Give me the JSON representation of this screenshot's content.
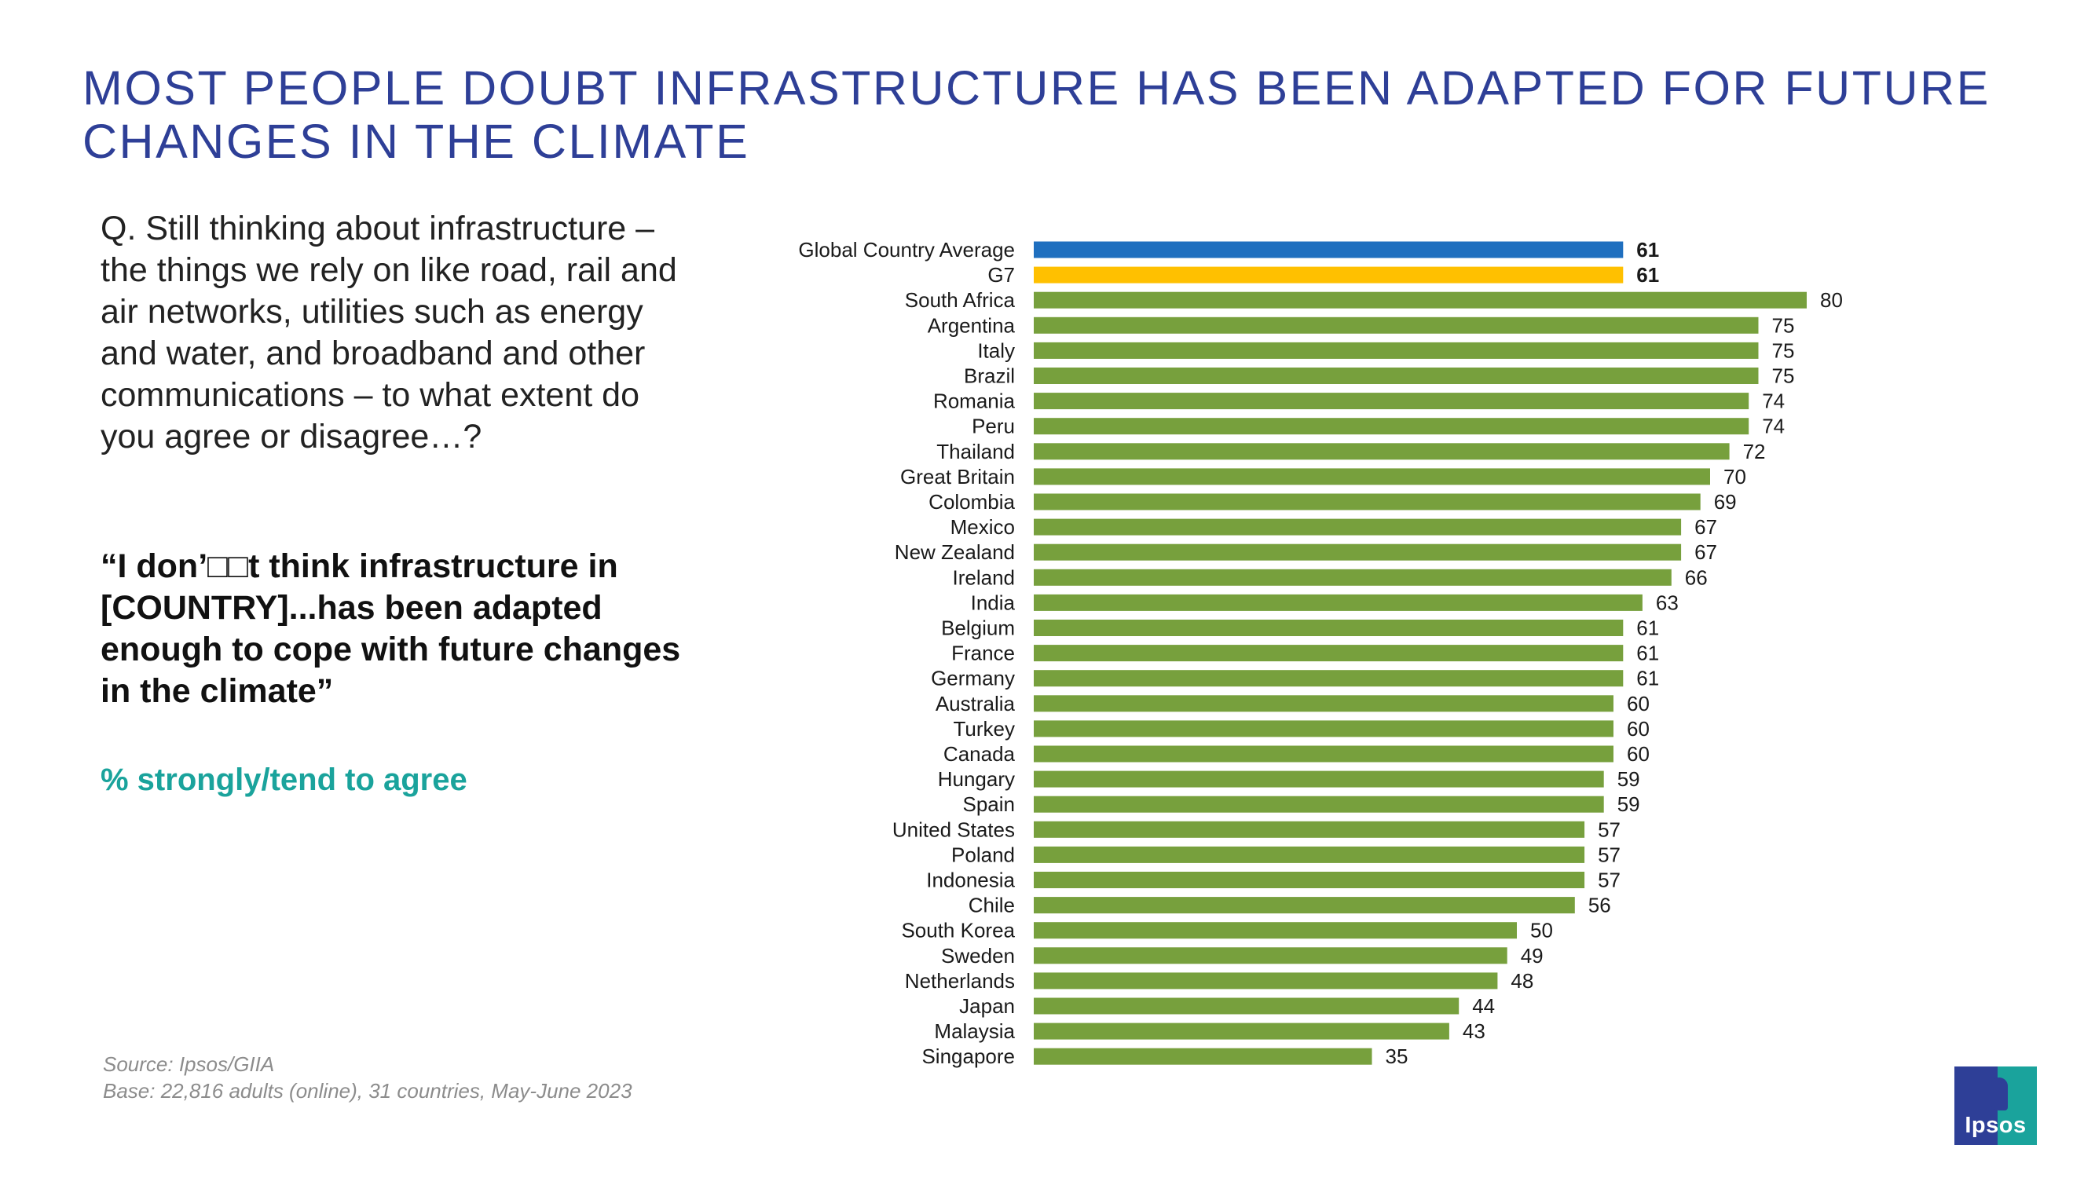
{
  "title": "MOST PEOPLE DOUBT INFRASTRUCTURE HAS BEEN ADAPTED FOR FUTURE CHANGES IN THE CLIMATE",
  "question": "Q. Still thinking about infrastructure – the things we rely on like road, rail and air networks, utilities such as energy and water, and broadband and other communications – to what extent do you agree or disagree…?",
  "quote": "“I don’□□t think infrastructure in [COUNTRY]...has been adapted enough to cope with future changes in the climate”",
  "metric_label": "% strongly/tend to agree",
  "source": "Source: Ipsos/GIIA",
  "base": "Base: 22,816 adults (online), 31 countries, May-June 2023",
  "logo_text": "Ipsos",
  "colors": {
    "title": "#2e3f97",
    "global_bar": "#1f6fbf",
    "g7_bar": "#ffc000",
    "country_bar": "#77a03d",
    "metric": "#1aa39c"
  },
  "chart_data": {
    "type": "bar",
    "orientation": "horizontal",
    "title": "",
    "xlabel": "",
    "ylabel": "",
    "xlim": [
      0,
      100
    ],
    "categories": [
      "Global Country Average",
      "G7",
      "South Africa",
      "Argentina",
      "Italy",
      "Brazil",
      "Romania",
      "Peru",
      "Thailand",
      "Great Britain",
      "Colombia",
      "Mexico",
      "New Zealand",
      "Ireland",
      "India",
      "Belgium",
      "France",
      "Germany",
      "Australia",
      "Turkey",
      "Canada",
      "Hungary",
      "Spain",
      "United States",
      "Poland",
      "Indonesia",
      "Chile",
      "South Korea",
      "Sweden",
      "Netherlands",
      "Japan",
      "Malaysia",
      "Singapore"
    ],
    "values": [
      61,
      61,
      80,
      75,
      75,
      75,
      74,
      74,
      72,
      70,
      69,
      67,
      67,
      66,
      63,
      61,
      61,
      61,
      60,
      60,
      60,
      59,
      59,
      57,
      57,
      57,
      56,
      50,
      49,
      48,
      44,
      43,
      35
    ],
    "bar_types": [
      "global",
      "g7",
      "country",
      "country",
      "country",
      "country",
      "country",
      "country",
      "country",
      "country",
      "country",
      "country",
      "country",
      "country",
      "country",
      "country",
      "country",
      "country",
      "country",
      "country",
      "country",
      "country",
      "country",
      "country",
      "country",
      "country",
      "country",
      "country",
      "country",
      "country",
      "country",
      "country",
      "country"
    ],
    "bold_labels": [
      true,
      true
    ]
  }
}
